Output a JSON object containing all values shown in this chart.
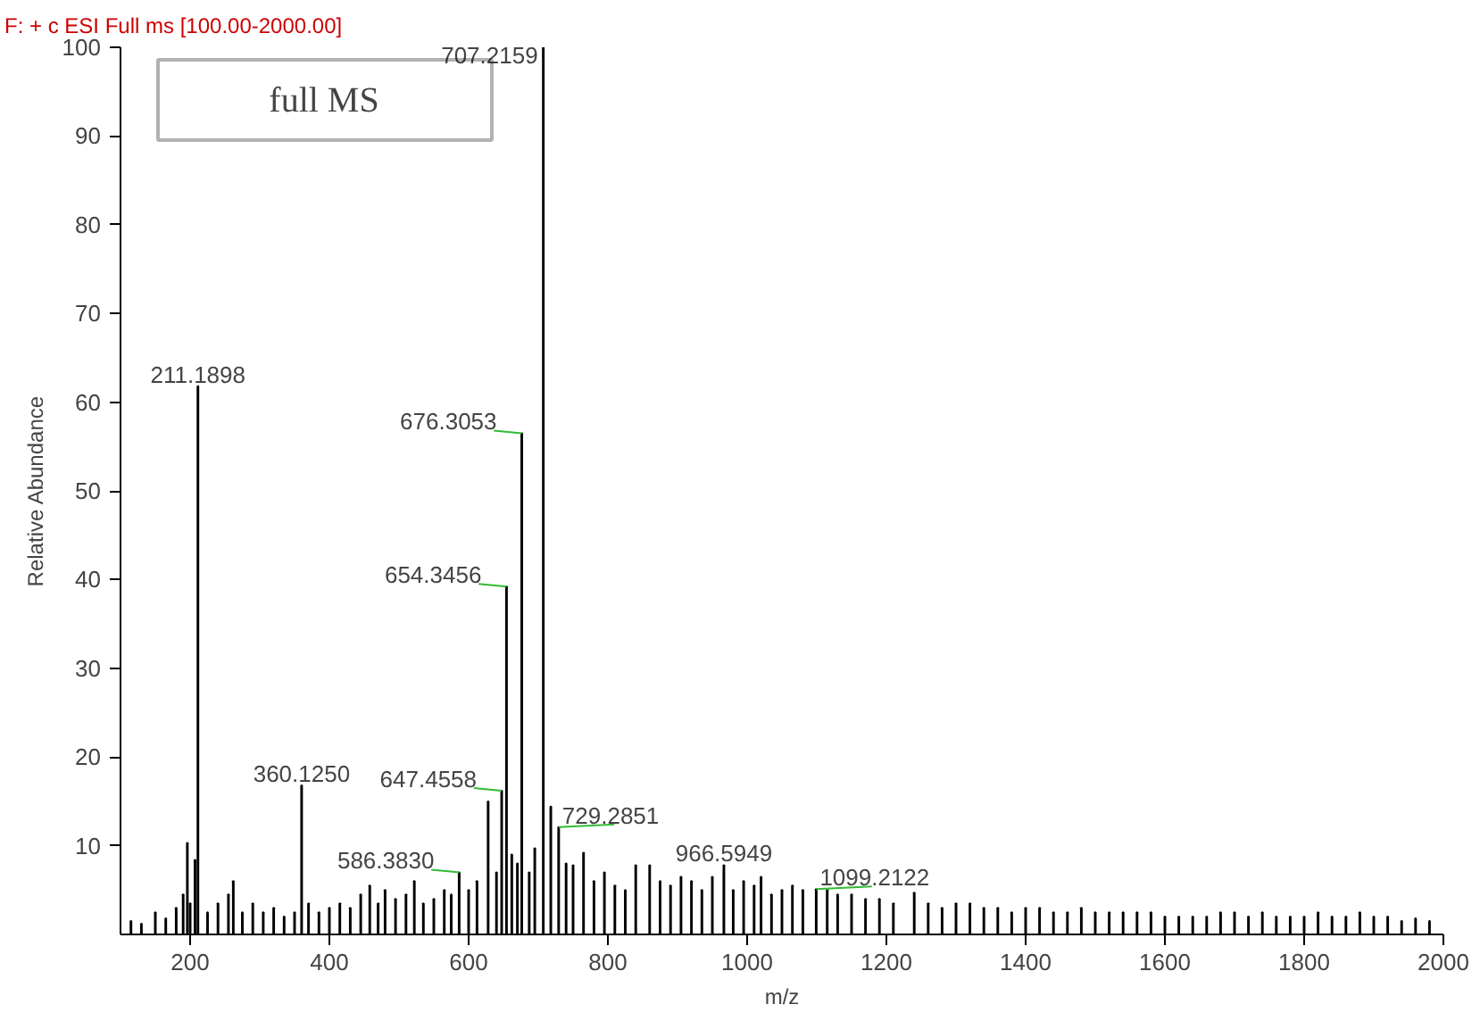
{
  "chart_data": {
    "type": "bar",
    "title": "F: + c ESI Full ms [100.00-2000.00]",
    "xlabel": "m/z",
    "ylabel": "Relative Abundance",
    "x": [
      115,
      130,
      150,
      165,
      180,
      190,
      196,
      200,
      207,
      211.1898,
      225,
      240,
      255,
      262,
      275,
      290,
      305,
      320,
      335,
      350,
      360.125,
      370,
      385,
      400,
      415,
      430,
      445,
      458,
      470,
      480,
      495,
      510,
      522,
      535,
      550,
      565,
      575,
      586.383,
      600,
      612,
      628,
      640,
      647.4558,
      654.3456,
      662,
      670,
      676.3053,
      687,
      695,
      707.2159,
      718,
      729.2851,
      740,
      750,
      765,
      780,
      795,
      810,
      825,
      840,
      860,
      875,
      890,
      905,
      920,
      935,
      950,
      966.5949,
      980,
      995,
      1010,
      1020,
      1035,
      1050,
      1065,
      1080,
      1099.2122,
      1115,
      1130,
      1150,
      1170,
      1190,
      1210,
      1240,
      1260,
      1280,
      1300,
      1320,
      1340,
      1360,
      1380,
      1400,
      1420,
      1440,
      1460,
      1480,
      1500,
      1520,
      1540,
      1560,
      1580,
      1600,
      1620,
      1640,
      1660,
      1680,
      1700,
      1720,
      1740,
      1760,
      1780,
      1800,
      1820,
      1840,
      1860,
      1880,
      1900,
      1920,
      1940,
      1960,
      1980
    ],
    "values": [
      1.5,
      1.2,
      2.5,
      1.8,
      3,
      4.5,
      10.3,
      3.5,
      8.4,
      61.8,
      2.5,
      3.5,
      4.5,
      6,
      2.5,
      3.5,
      2.5,
      3,
      2,
      2.5,
      16.8,
      3.5,
      2.5,
      3,
      3.5,
      3,
      4.5,
      5.5,
      3.5,
      5,
      4,
      4.5,
      6,
      3.5,
      4,
      5,
      4.5,
      7.0,
      5,
      6,
      15.0,
      7,
      16.2,
      39.2,
      9,
      8,
      56.5,
      7,
      9.7,
      100,
      14.4,
      12.1,
      8,
      7.8,
      9.2,
      6,
      7,
      5.5,
      5,
      7.8,
      7.8,
      6,
      5.5,
      6.5,
      6,
      5,
      6.5,
      7.8,
      5,
      6,
      5.5,
      6.5,
      4.5,
      5,
      5.5,
      5,
      5.1,
      5,
      4.5,
      4.5,
      4,
      4,
      3.5,
      4.7,
      3.5,
      3,
      3.5,
      3.5,
      3,
      3,
      2.5,
      3,
      3,
      2.5,
      2.5,
      3,
      2.5,
      2.5,
      2.5,
      2.5,
      2.5,
      2,
      2,
      2,
      2,
      2.5,
      2.5,
      2,
      2.5,
      2,
      2,
      2,
      2.5,
      2,
      2,
      2.5,
      2,
      2,
      1.5,
      1.8,
      1.5
    ],
    "color": "#000000",
    "xlim": [
      100,
      2000
    ],
    "xticks": [
      200,
      400,
      600,
      800,
      1000,
      1200,
      1400,
      1600,
      1800,
      2000
    ],
    "ylim": [
      0,
      100
    ],
    "yticks": [
      10,
      20,
      30,
      40,
      50,
      60,
      70,
      80,
      90,
      100
    ],
    "grid": false,
    "annotations": [
      {
        "text": "707.2159",
        "x": 707.2159,
        "y": 100
      },
      {
        "text": "211.1898",
        "x": 211.1898,
        "y": 61.8
      },
      {
        "text": "676.3053",
        "x": 676.3053,
        "y": 56.5
      },
      {
        "text": "654.3456",
        "x": 654.3456,
        "y": 39.2
      },
      {
        "text": "360.1250",
        "x": 360.125,
        "y": 16.8
      },
      {
        "text": "647.4558",
        "x": 647.4558,
        "y": 16.2
      },
      {
        "text": "586.3830",
        "x": 586.383,
        "y": 7.0
      },
      {
        "text": "729.2851",
        "x": 729.2851,
        "y": 12.1
      },
      {
        "text": "966.5949",
        "x": 966.5949,
        "y": 7.8
      },
      {
        "text": "1099.2122",
        "x": 1099.2122,
        "y": 5.1
      },
      "full MS"
    ]
  }
}
